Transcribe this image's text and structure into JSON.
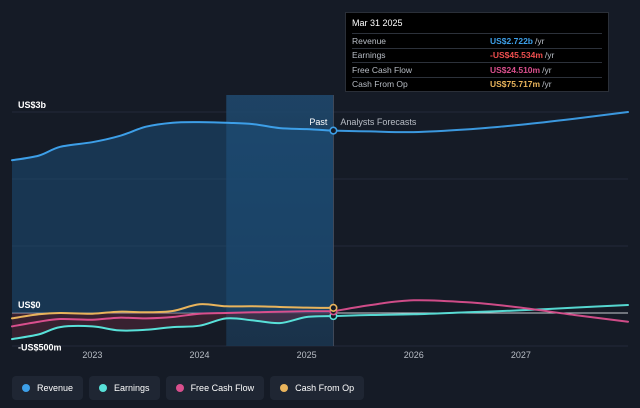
{
  "tooltip": {
    "date": "Mar 31 2025",
    "rows": [
      {
        "label": "Revenue",
        "value": "US$2.722b",
        "unit": "/yr",
        "color": "#3d9fe8"
      },
      {
        "label": "Earnings",
        "value": "-US$45.534m",
        "unit": "/yr",
        "color": "#ef4f4f"
      },
      {
        "label": "Free Cash Flow",
        "value": "US$24.510m",
        "unit": "/yr",
        "color": "#d94f8d"
      },
      {
        "label": "Cash From Op",
        "value": "US$75.717m",
        "unit": "/yr",
        "color": "#e9b45c"
      }
    ]
  },
  "legend": [
    {
      "label": "Revenue",
      "color": "#3d9fe8"
    },
    {
      "label": "Earnings",
      "color": "#58e1d9"
    },
    {
      "label": "Free Cash Flow",
      "color": "#d94f8d"
    },
    {
      "label": "Cash From Op",
      "color": "#e9b45c"
    }
  ],
  "chart_data": {
    "type": "line",
    "y_tick_labels": [
      "US$3b",
      "US$0",
      "-US$500m"
    ],
    "y_ticks": [
      3000,
      0,
      -500
    ],
    "ylim": [
      -500,
      3000
    ],
    "xlim": [
      2022.25,
      2028.0
    ],
    "x_tick_labels": [
      "2023",
      "2024",
      "2025",
      "2026",
      "2027"
    ],
    "x_ticks": [
      2023,
      2024,
      2025,
      2026,
      2027
    ],
    "divider_x": 2025.25,
    "past_label": "Past",
    "forecast_label": "Analysts Forecasts",
    "highlight_band": [
      2024.25,
      2025.25
    ],
    "series": [
      {
        "name": "Revenue",
        "color": "#3d9fe8",
        "x": [
          2022.25,
          2022.5,
          2022.7,
          2023.0,
          2023.25,
          2023.5,
          2023.75,
          2024.0,
          2024.25,
          2024.5,
          2024.75,
          2025.0,
          2025.25
        ],
        "y": [
          2280,
          2350,
          2480,
          2550,
          2640,
          2780,
          2840,
          2850,
          2840,
          2820,
          2760,
          2745,
          2722
        ]
      },
      {
        "name": "Revenue forecast",
        "color": "#3d9fe8",
        "x": [
          2025.25,
          2025.6,
          2026.0,
          2026.5,
          2027.0,
          2027.5,
          2028.0
        ],
        "y": [
          2722,
          2710,
          2700,
          2740,
          2810,
          2900,
          3000
        ]
      },
      {
        "name": "Earnings",
        "color": "#58e1d9",
        "x": [
          2022.25,
          2022.5,
          2022.7,
          2023.0,
          2023.25,
          2023.5,
          2023.75,
          2024.0,
          2024.25,
          2024.5,
          2024.75,
          2025.0,
          2025.25
        ],
        "y": [
          -390,
          -320,
          -210,
          -200,
          -260,
          -250,
          -210,
          -190,
          -80,
          -110,
          -150,
          -60,
          -46
        ]
      },
      {
        "name": "Earnings forecast",
        "color": "#58e1d9",
        "x": [
          2025.25,
          2025.6,
          2026.0,
          2026.5,
          2027.0,
          2027.5,
          2028.0
        ],
        "y": [
          -46,
          -30,
          -20,
          10,
          40,
          80,
          120
        ]
      },
      {
        "name": "Free Cash Flow",
        "color": "#d94f8d",
        "x": [
          2022.25,
          2022.5,
          2022.7,
          2023.0,
          2023.25,
          2023.5,
          2023.75,
          2024.0,
          2024.25,
          2024.5,
          2024.75,
          2025.0,
          2025.25
        ],
        "y": [
          -200,
          -130,
          -90,
          -100,
          -70,
          -80,
          -60,
          -10,
          0,
          10,
          20,
          25,
          25
        ]
      },
      {
        "name": "Free Cash Flow forecast",
        "color": "#d94f8d",
        "x": [
          2025.25,
          2025.6,
          2026.0,
          2026.5,
          2027.0,
          2027.5,
          2028.0
        ],
        "y": [
          25,
          120,
          190,
          160,
          80,
          -30,
          -130
        ]
      },
      {
        "name": "Cash From Op",
        "color": "#e9b45c",
        "x": [
          2022.25,
          2022.5,
          2022.7,
          2023.0,
          2023.25,
          2023.5,
          2023.75,
          2024.0,
          2024.25,
          2024.5,
          2024.75,
          2025.0,
          2025.25
        ],
        "y": [
          -80,
          -20,
          0,
          -10,
          20,
          10,
          30,
          130,
          100,
          100,
          90,
          80,
          76
        ]
      }
    ]
  }
}
